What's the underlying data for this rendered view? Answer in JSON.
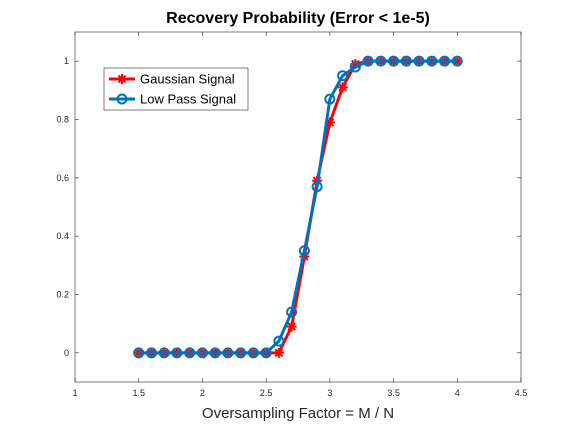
{
  "chart_data": {
    "type": "line",
    "title": "Recovery Probability (Error < 1e-5)",
    "xlabel": "Oversampling Factor = M / N",
    "ylabel": "",
    "xlim": [
      1,
      4.5
    ],
    "ylim": [
      -0.1,
      1.1
    ],
    "xticks": [
      1,
      1.5,
      2,
      2.5,
      3,
      3.5,
      4,
      4.5
    ],
    "xtick_labels": [
      "1",
      "1.5",
      "2",
      "2.5",
      "3",
      "3.5",
      "4",
      "4.5"
    ],
    "yticks": [
      0,
      0.2,
      0.4,
      0.6,
      0.8,
      1
    ],
    "ytick_labels": [
      "0",
      "0.2",
      "0.4",
      "0.6",
      "0.8",
      "1"
    ],
    "grid": false,
    "legend_position": "top-left",
    "x": [
      1.5,
      1.6,
      1.7,
      1.8,
      1.9,
      2.0,
      2.1,
      2.2,
      2.3,
      2.4,
      2.5,
      2.6,
      2.7,
      2.8,
      2.9,
      3.0,
      3.1,
      3.2,
      3.3,
      3.4,
      3.5,
      3.6,
      3.7,
      3.8,
      3.9,
      4.0
    ],
    "series": [
      {
        "name": "Gaussian Signal",
        "color": "#ff0000",
        "marker": "asterisk",
        "values": [
          0,
          0,
          0,
          0,
          0,
          0,
          0,
          0,
          0,
          0,
          0,
          0,
          0.09,
          0.33,
          0.59,
          0.79,
          0.91,
          0.99,
          1,
          1,
          1,
          1,
          1,
          1,
          1,
          1
        ]
      },
      {
        "name": "Low Pass Signal",
        "color": "#0072bd",
        "marker": "circle",
        "values": [
          0,
          0,
          0,
          0,
          0,
          0,
          0,
          0,
          0,
          0,
          0,
          0.04,
          0.14,
          0.35,
          0.57,
          0.87,
          0.95,
          0.98,
          1,
          1,
          1,
          1,
          1,
          1,
          1,
          1
        ]
      }
    ]
  }
}
